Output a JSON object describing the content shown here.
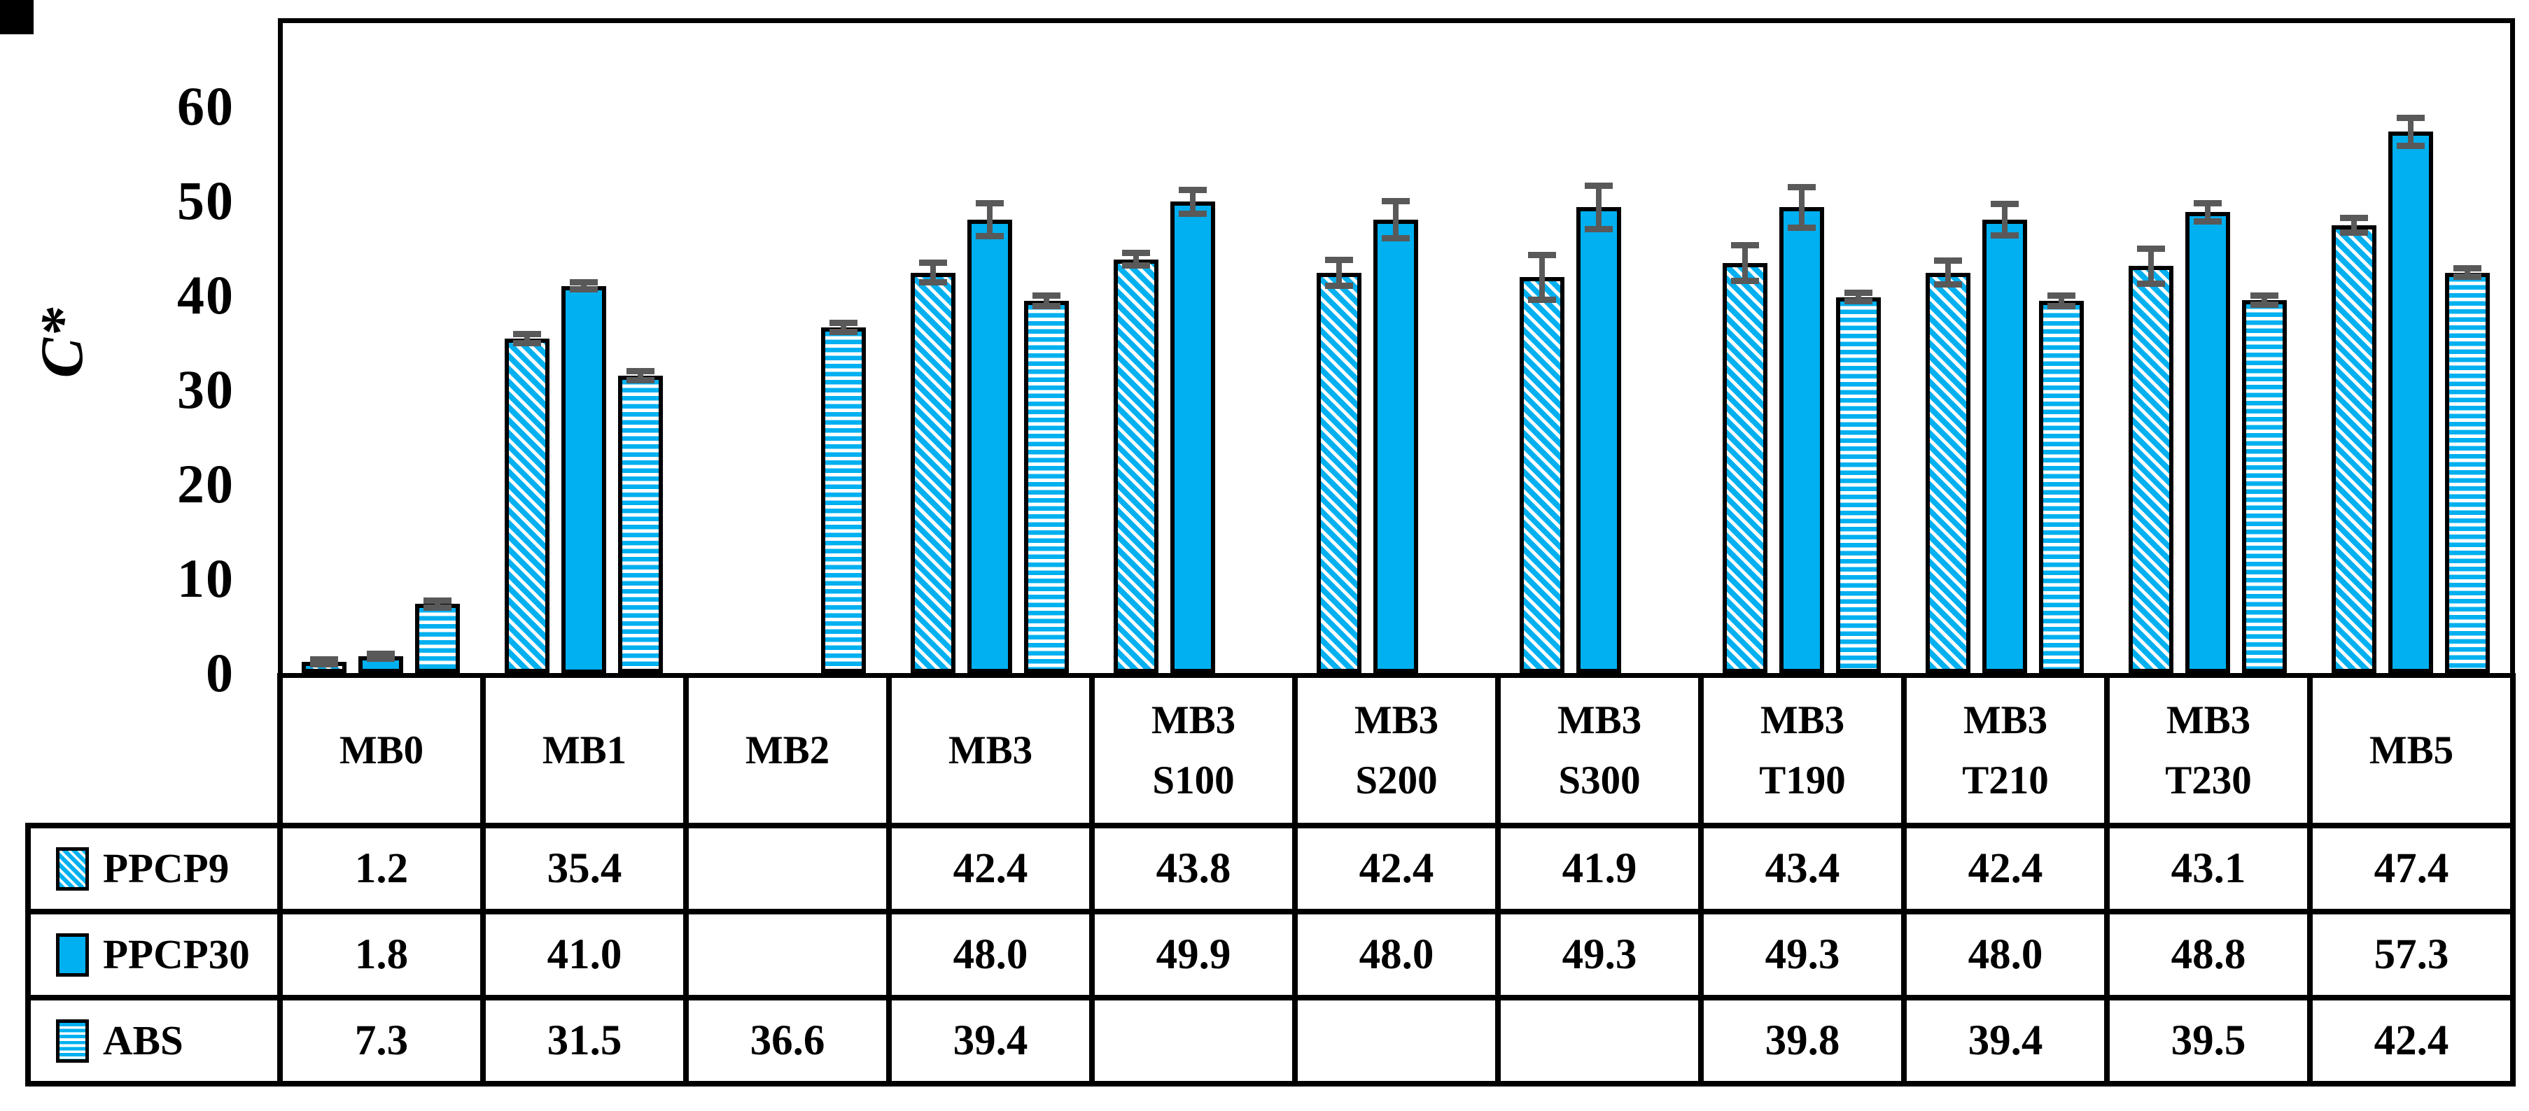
{
  "chart_data": {
    "type": "bar",
    "title": "",
    "ylabel": "C*",
    "xlabel": "",
    "yticks": [
      0,
      10,
      20,
      30,
      40,
      50,
      60
    ],
    "ylim": [
      0,
      69
    ],
    "grid": false,
    "legend_position": "left column of data table",
    "categories": [
      "MB0",
      "MB1",
      "MB2",
      "MB3",
      "MB3\nS100",
      "MB3\nS200",
      "MB3\nS300",
      "MB3\nT190",
      "MB3\nT210",
      "MB3\nT230",
      "MB5"
    ],
    "series": [
      {
        "name": "PPCP9",
        "pattern": "diagonal-hatch",
        "values": [
          1.2,
          35.4,
          null,
          42.4,
          43.8,
          42.4,
          41.9,
          43.4,
          42.4,
          43.1,
          47.4
        ],
        "errors": [
          0.3,
          0.5,
          null,
          1.1,
          0.7,
          1.4,
          2.4,
          1.9,
          1.3,
          1.9,
          0.8
        ]
      },
      {
        "name": "PPCP30",
        "pattern": "solid",
        "values": [
          1.8,
          41.0,
          null,
          48.0,
          49.9,
          48.0,
          49.3,
          49.3,
          48.0,
          48.8,
          57.3
        ],
        "errors": [
          0.3,
          0.4,
          null,
          1.8,
          1.3,
          2.0,
          2.3,
          2.2,
          1.7,
          1.0,
          1.5
        ]
      },
      {
        "name": "ABS",
        "pattern": "horizontal-stripes",
        "values": [
          7.3,
          31.5,
          36.6,
          39.4,
          null,
          null,
          null,
          39.8,
          39.4,
          39.5,
          42.4
        ],
        "errors": [
          0.4,
          0.5,
          0.5,
          0.6,
          null,
          null,
          null,
          0.5,
          0.6,
          0.5,
          0.5
        ]
      }
    ],
    "value_format": "one-decimal",
    "colors": {
      "bar_fill": "#00B0F0",
      "pattern_background": "#FFFFFF",
      "bar_border": "#000000",
      "error_bar": "#595959",
      "axis": "#000000",
      "text": "#000000",
      "background": "#FFFFFF"
    }
  }
}
